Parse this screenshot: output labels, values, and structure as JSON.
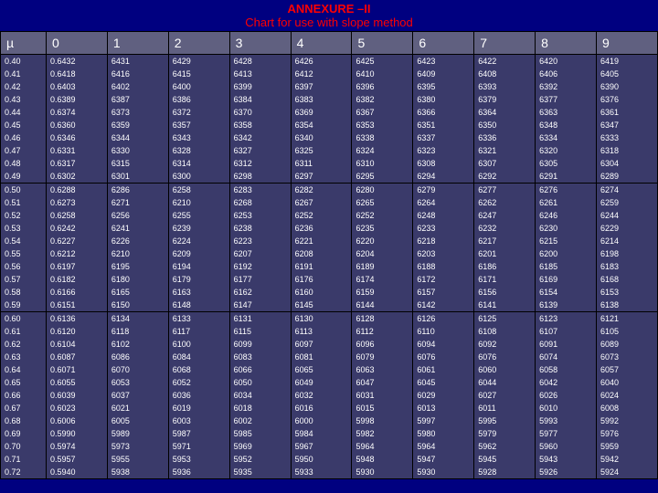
{
  "title1": "ANNEXURE –II",
  "title2": "Chart for use with slope method",
  "columns": [
    "µ",
    "0",
    "1",
    "2",
    "3",
    "4",
    "5",
    "6",
    "7",
    "8",
    "9"
  ],
  "groups": [
    [
      [
        "0.40",
        "0.6432",
        "6431",
        "6429",
        "6428",
        "6426",
        "6425",
        "6423",
        "6422",
        "6420",
        "6419"
      ],
      [
        "0.41",
        "0.6418",
        "6416",
        "6415",
        "6413",
        "6412",
        "6410",
        "6409",
        "6408",
        "6406",
        "6405"
      ],
      [
        "0.42",
        "0.6403",
        "6402",
        "6400",
        "6399",
        "6397",
        "6396",
        "6395",
        "6393",
        "6392",
        "6390"
      ],
      [
        "0.43",
        "0.6389",
        "6387",
        "6386",
        "6384",
        "6383",
        "6382",
        "6380",
        "6379",
        "6377",
        "6376"
      ],
      [
        "0.44",
        "0.6374",
        "6373",
        "6372",
        "6370",
        "6369",
        "6367",
        "6366",
        "6364",
        "6363",
        "6361"
      ],
      [
        "0.45",
        "0.6360",
        "6359",
        "6357",
        "6358",
        "6354",
        "6353",
        "6351",
        "6350",
        "6348",
        "6347"
      ],
      [
        "0.46",
        "0.6346",
        "6344",
        "6343",
        "6342",
        "6340",
        "6338",
        "6337",
        "6336",
        "6334",
        "6333"
      ],
      [
        "0.47",
        "0.6331",
        "6330",
        "6328",
        "6327",
        "6325",
        "6324",
        "6323",
        "6321",
        "6320",
        "6318"
      ],
      [
        "0.48",
        "0.6317",
        "6315",
        "6314",
        "6312",
        "6311",
        "6310",
        "6308",
        "6307",
        "6305",
        "6304"
      ],
      [
        "0.49",
        "0.6302",
        "6301",
        "6300",
        "6298",
        "6297",
        "6295",
        "6294",
        "6292",
        "6291",
        "6289"
      ]
    ],
    [
      [
        "0.50",
        "0.6288",
        "6286",
        "6258",
        "6283",
        "6282",
        "6280",
        "6279",
        "6277",
        "6276",
        "6274"
      ],
      [
        "0.51",
        "0.6273",
        "6271",
        "6210",
        "6268",
        "6267",
        "6265",
        "6264",
        "6262",
        "6261",
        "6259"
      ],
      [
        "0.52",
        "0.6258",
        "6256",
        "6255",
        "6253",
        "6252",
        "6252",
        "6248",
        "6247",
        "6246",
        "6244"
      ],
      [
        "0.53",
        "0.6242",
        "6241",
        "6239",
        "6238",
        "6236",
        "6235",
        "6233",
        "6232",
        "6230",
        "6229"
      ],
      [
        "0.54",
        "0.6227",
        "6226",
        "6224",
        "6223",
        "6221",
        "6220",
        "6218",
        "6217",
        "6215",
        "6214"
      ],
      [
        "0.55",
        "0.6212",
        "6210",
        "6209",
        "6207",
        "6208",
        "6204",
        "6203",
        "6201",
        "6200",
        "6198"
      ],
      [
        "0.56",
        "0.6197",
        "6195",
        "6194",
        "6192",
        "6191",
        "6189",
        "6188",
        "6186",
        "6185",
        "6183"
      ],
      [
        "0.57",
        "0.6182",
        "6180",
        "6179",
        "6177",
        "6176",
        "6174",
        "6172",
        "6171",
        "6169",
        "6168"
      ],
      [
        "0.58",
        "0.6166",
        "6165",
        "6163",
        "6162",
        "6160",
        "6159",
        "6157",
        "6156",
        "6154",
        "6153"
      ],
      [
        "0.59",
        "0.6151",
        "6150",
        "6148",
        "6147",
        "6145",
        "6144",
        "6142",
        "6141",
        "6139",
        "6138"
      ]
    ],
    [
      [
        "0.60",
        "0.6136",
        "6134",
        "6133",
        "6131",
        "6130",
        "6128",
        "6126",
        "6125",
        "6123",
        "6121"
      ],
      [
        "0.61",
        "0.6120",
        "6118",
        "6117",
        "6115",
        "6113",
        "6112",
        "6110",
        "6108",
        "6107",
        "6105"
      ],
      [
        "0.62",
        "0.6104",
        "6102",
        "6100",
        "6099",
        "6097",
        "6096",
        "6094",
        "6092",
        "6091",
        "6089"
      ],
      [
        "0.63",
        "0.6087",
        "6086",
        "6084",
        "6083",
        "6081",
        "6079",
        "6076",
        "6076",
        "6074",
        "6073"
      ],
      [
        "0.64",
        "0.6071",
        "6070",
        "6068",
        "6066",
        "6065",
        "6063",
        "6061",
        "6060",
        "6058",
        "6057"
      ],
      [
        "0.65",
        "0.6055",
        "6053",
        "6052",
        "6050",
        "6049",
        "6047",
        "6045",
        "6044",
        "6042",
        "6040"
      ],
      [
        "0.66",
        "0.6039",
        "6037",
        "6036",
        "6034",
        "6032",
        "6031",
        "6029",
        "6027",
        "6026",
        "6024"
      ],
      [
        "0.67",
        "0.6023",
        "6021",
        "6019",
        "6018",
        "6016",
        "6015",
        "6013",
        "6011",
        "6010",
        "6008"
      ],
      [
        "0.68",
        "0.6006",
        "6005",
        "6003",
        "6002",
        "6000",
        "5998",
        "5997",
        "5995",
        "5993",
        "5992"
      ],
      [
        "0.69",
        "0.5990",
        "5989",
        "5987",
        "5985",
        "5984",
        "5982",
        "5980",
        "5979",
        "5977",
        "5976"
      ],
      [
        "0.70",
        "0.5974",
        "5973",
        "5971",
        "5969",
        "5967",
        "5964",
        "5964",
        "5962",
        "5960",
        "5959"
      ],
      [
        "0.71",
        "0.5957",
        "5955",
        "5953",
        "5952",
        "5950",
        "5948",
        "5947",
        "5945",
        "5943",
        "5942"
      ],
      [
        "0.72",
        "0.5940",
        "5938",
        "5936",
        "5935",
        "5933",
        "5930",
        "5930",
        "5928",
        "5926",
        "5924"
      ]
    ]
  ],
  "style": {
    "bg": "#000080",
    "cell_bg": "#3a3a6a",
    "header_bg": "#606080",
    "text_color": "#ffffff",
    "title_color": "#ff0000",
    "border_color": "#000000",
    "font_small": 9,
    "font_header": 14,
    "font_title": 13
  }
}
